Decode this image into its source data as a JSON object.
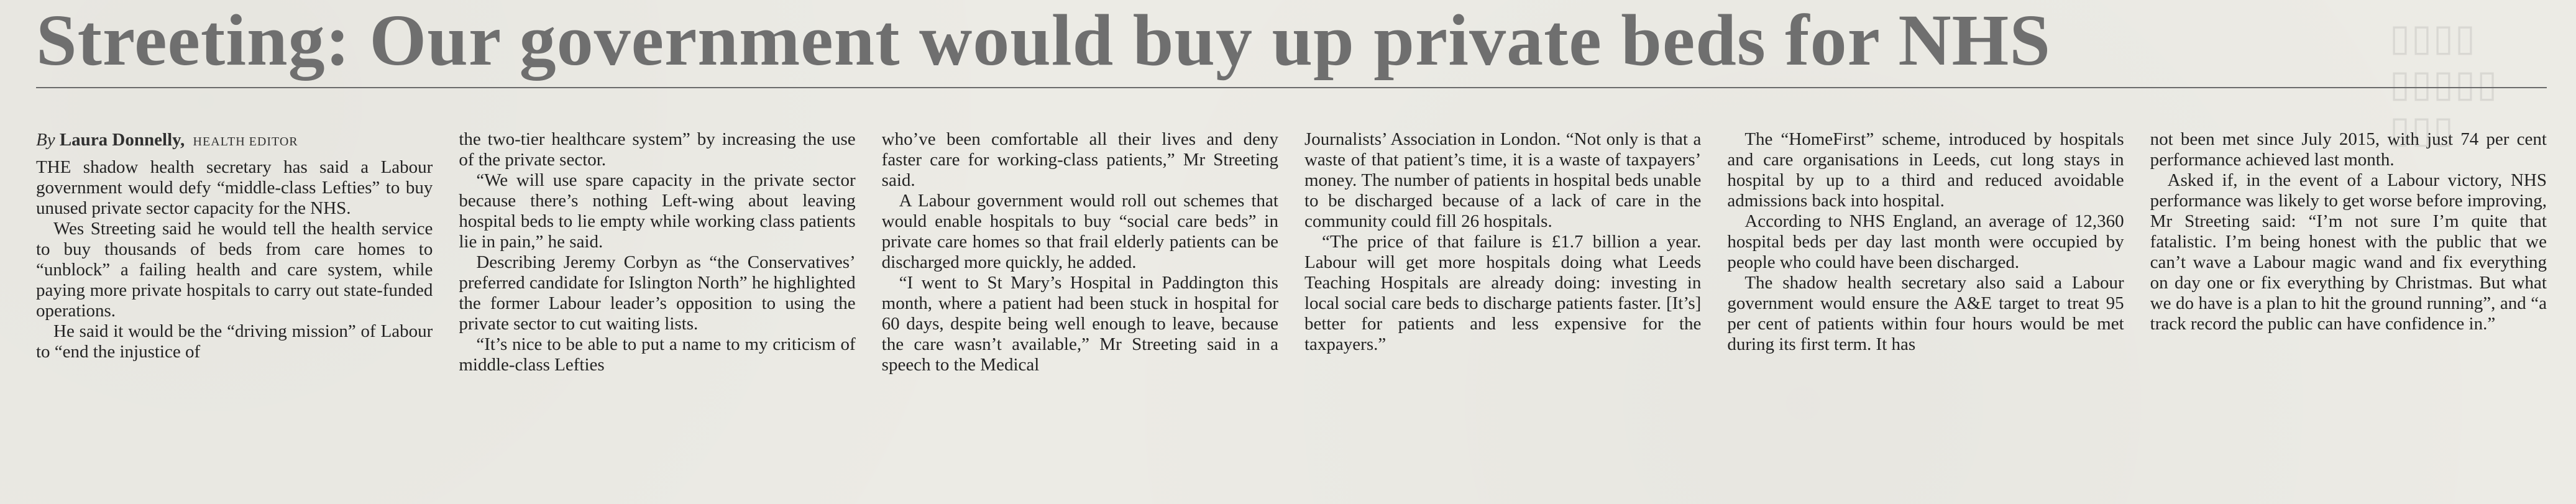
{
  "headline": "Streeting: Our government would buy up private beds for NHS",
  "byline": {
    "prefix": "By",
    "author": "Laura Donnelly,",
    "role": "HEALTH EDITOR"
  },
  "columns": [
    {
      "paragraphs": [
        "THE shadow health secretary has said a Labour government would defy “middle-class Lefties” to buy unused private sector capacity for the NHS.",
        "Wes Streeting said he would tell the health service to buy thousands of beds from care homes to “unblock” a failing health and care system, while paying more private hospitals to carry out state-funded operations.",
        "He said it would be the “driving mission” of Labour to “end the injustice of"
      ]
    },
    {
      "paragraphs": [
        "the two-tier healthcare system” by increasing the use of the private sector.",
        "“We will use spare capacity in the private sector because there’s nothing Left-wing about leaving hospital beds to lie empty while working class patients lie in pain,” he said.",
        "Describing Jeremy Corbyn as “the Conservatives’ preferred candidate for Islington North” he highlighted the former Labour leader’s opposition to using the private sector to cut waiting lists.",
        "“It’s nice to be able to put a name to my criticism of middle-class Lefties"
      ]
    },
    {
      "paragraphs": [
        "who’ve been comfortable all their lives and deny faster care for working-class patients,” Mr Streeting said.",
        "A Labour government would roll out schemes that would enable hospitals to buy “social care beds” in private care homes so that frail elderly patients can be discharged more quickly, he added.",
        "“I went to St Mary’s Hospital in Paddington this month, where a patient had been stuck in hospital for 60 days, despite being well enough to leave, because the care wasn’t available,” Mr Streeting said in a speech to the Medical"
      ]
    },
    {
      "paragraphs": [
        "Journalists’ Association in London. “Not only is that a waste of that patient’s time, it is a waste of taxpayers’ money. The number of patients in hospital beds unable to be discharged because of a lack of care in the community could fill 26 hospitals.",
        "“The price of that failure is £1.7 billion a year. Labour will get more hospitals doing what Leeds Teaching Hospitals are already doing: investing in local social care beds to discharge patients faster. [It’s] better for patients and less expensive for the taxpayers.”"
      ]
    },
    {
      "paragraphs": [
        "The “HomeFirst” scheme, introduced by hospitals and care organisations in Leeds, cut long stays in hospital by up to a third and reduced avoidable admissions back into hospital.",
        "According to NHS England, an average of 12,360 hospital beds per day last month were occupied by people who could have been discharged.",
        "The shadow health secretary also said a Labour government would ensure the A&E target to treat 95 per cent of patients within four hours would be met during its first term. It has"
      ]
    },
    {
      "paragraphs": [
        "not been met since July 2015, with just 74 per cent performance achieved last month.",
        "Asked if, in the event of a Labour victory, NHS performance was likely to get worse before improving, Mr Streeting said: “I’m not sure I’m quite that fatalistic. I’m being honest with the public that we can’t wave a Labour magic wand and fix everything on day one or fix everything by Christmas. But what we do have is a plan to hit the ground running”, and “a track record the public can have confidence in.”"
      ]
    }
  ]
}
